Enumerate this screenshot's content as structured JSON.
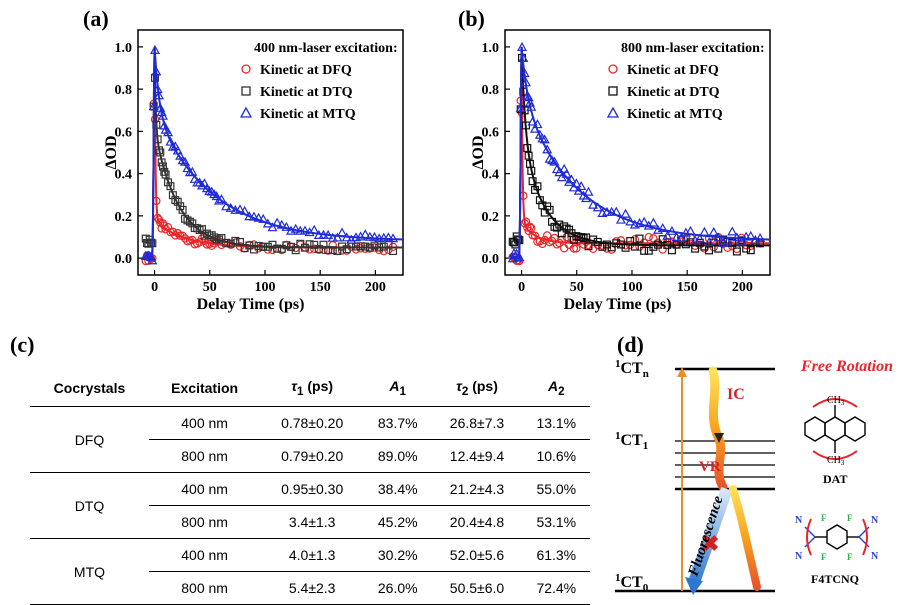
{
  "panels": {
    "a": "(a)",
    "b": "(b)",
    "c": "(c)",
    "d": "(d)"
  },
  "chart_data": [
    {
      "type": "scatter",
      "title": "400 nm-laser excitation:",
      "xlabel": "Delay Time (ps)",
      "ylabel": "ΔOD",
      "xlim": [
        -15,
        225
      ],
      "ylim": [
        -0.08,
        1.08
      ],
      "xticks": [
        0,
        50,
        100,
        150,
        200
      ],
      "yticks": [
        0.0,
        0.2,
        0.4,
        0.6,
        0.8,
        1.0
      ],
      "legend": "top-right",
      "series": [
        {
          "name": "Kinetic at DFQ",
          "color": "#e8262a",
          "marker": "circle",
          "tau": [
            0.78,
            26.8
          ],
          "amp": [
            0.837,
            0.131
          ],
          "offset": 0.05
        },
        {
          "name": "Kinetic at DTQ",
          "color": "#333333",
          "marker": "square",
          "tau": [
            0.95,
            21.2
          ],
          "amp": [
            0.384,
            0.55
          ],
          "offset": 0.05
        },
        {
          "name": "Kinetic at MTQ",
          "color": "#1f2bd6",
          "marker": "triangle",
          "tau": [
            4.0,
            52.0
          ],
          "amp": [
            0.302,
            0.613
          ],
          "offset": 0.08
        }
      ]
    },
    {
      "type": "scatter",
      "title": "800 nm-laser excitation:",
      "xlabel": "Delay Time (ps)",
      "ylabel": "ΔOD",
      "xlim": [
        -15,
        225
      ],
      "ylim": [
        -0.08,
        1.08
      ],
      "xticks": [
        0,
        50,
        100,
        150,
        200
      ],
      "yticks": [
        0.0,
        0.2,
        0.4,
        0.6,
        0.8,
        1.0
      ],
      "legend": "top-right",
      "series": [
        {
          "name": "Kinetic at DFQ",
          "color": "#e8262a",
          "marker": "circle",
          "tau": [
            0.79,
            12.4
          ],
          "amp": [
            0.89,
            0.106
          ],
          "offset": 0.07
        },
        {
          "name": "Kinetic at DTQ",
          "color": "#111111",
          "marker": "square",
          "tau": [
            3.4,
            20.4
          ],
          "amp": [
            0.452,
            0.531
          ],
          "offset": 0.06
        },
        {
          "name": "Kinetic at MTQ",
          "color": "#1f2bd6",
          "marker": "triangle",
          "tau": [
            5.4,
            50.5
          ],
          "amp": [
            0.26,
            0.724
          ],
          "offset": 0.08
        }
      ]
    }
  ],
  "table": {
    "headers": [
      "Cocrystals",
      "Excitation",
      "τ1 (ps)",
      "A1",
      "τ2 (ps)",
      "A2"
    ],
    "groups": [
      {
        "name": "DFQ",
        "rows": [
          [
            "400 nm",
            "0.78±0.20",
            "83.7%",
            "26.8±7.3",
            "13.1%"
          ],
          [
            "800 nm",
            "0.79±0.20",
            "89.0%",
            "12.4±9.4",
            "10.6%"
          ]
        ]
      },
      {
        "name": "DTQ",
        "rows": [
          [
            "400 nm",
            "0.95±0.30",
            "38.4%",
            "21.2±4.3",
            "55.0%"
          ],
          [
            "800 nm",
            "3.4±1.3",
            "45.2%",
            "20.4±4.8",
            "53.1%"
          ]
        ]
      },
      {
        "name": "MTQ",
        "rows": [
          [
            "400 nm",
            "4.0±1.3",
            "30.2%",
            "52.0±5.6",
            "61.3%"
          ],
          [
            "800 nm",
            "5.4±2.3",
            "26.0%",
            "50.5±6.0",
            "72.4%"
          ]
        ]
      }
    ]
  },
  "diagram": {
    "ctn": "CT",
    "ctn_sub": "n",
    "ct1": "CT",
    "ct1_sub": "1",
    "ct0": "CT",
    "ct0_sub": "0",
    "sup": "1",
    "ic": "IC",
    "vr": "VR",
    "fluorescence": "Fluorescence",
    "free_rotation": "Free Rotation",
    "mol1": "DAT",
    "mol2": "F4TCNQ",
    "ch3": "CH",
    "ch3_sub": "3",
    "n": "N",
    "f": "F"
  }
}
